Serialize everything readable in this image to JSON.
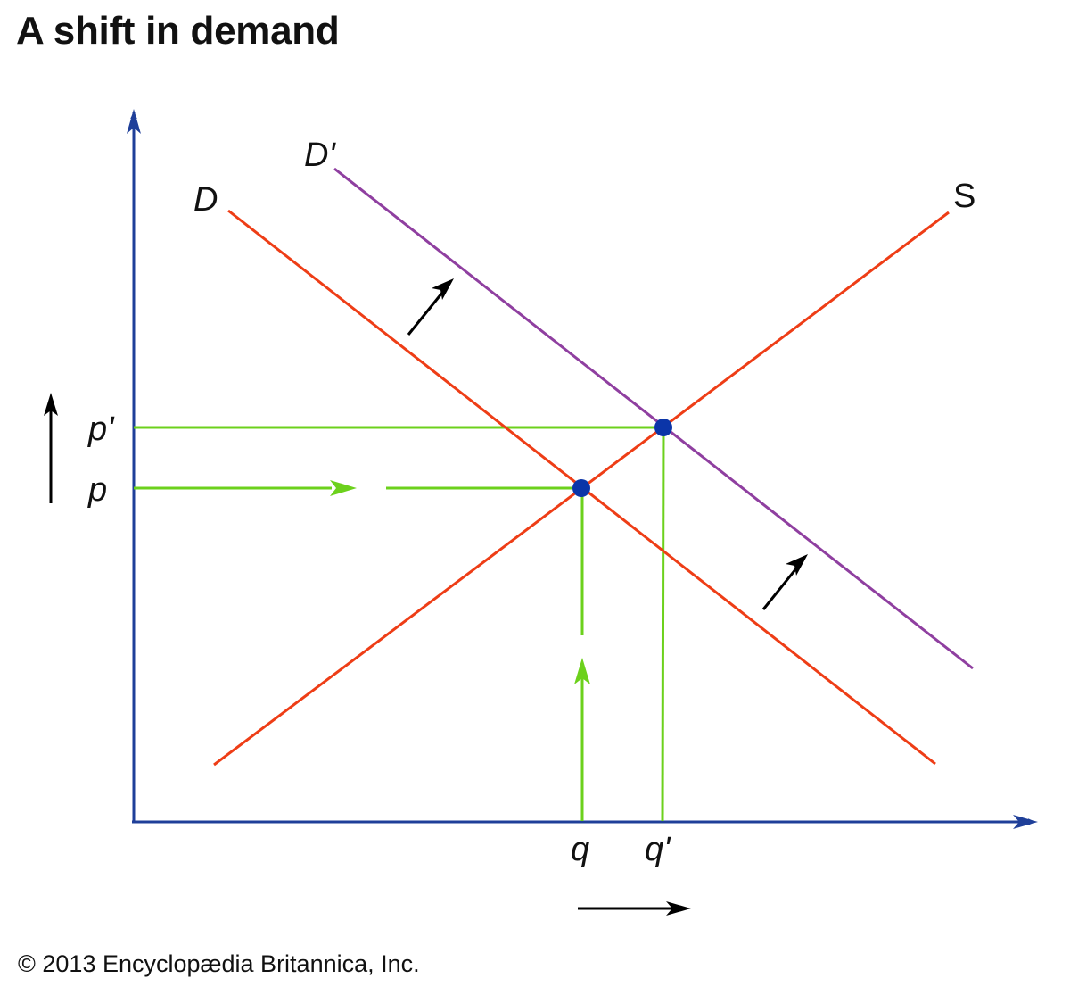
{
  "title": "A shift in demand",
  "credit": "© 2013 Encyclopædia Britannica, Inc.",
  "labels": {
    "demand": "D",
    "demand_shifted": "D'",
    "supply": "S",
    "price": "p",
    "price_new": "p'",
    "quantity": "q",
    "quantity_new": "q'"
  },
  "colors": {
    "axis": "#1f3f99",
    "demand": "#ee3d16",
    "supply": "#ee3d16",
    "demand_shifted": "#8f3fa0",
    "guide": "#6cd11c",
    "equilibrium": "#0b35a8",
    "arrow": "#000000"
  }
}
